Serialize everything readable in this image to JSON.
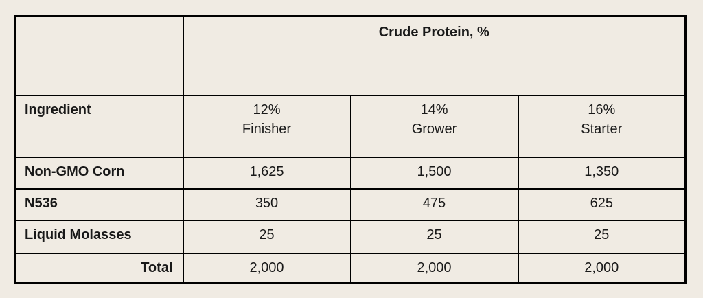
{
  "colors": {
    "page_background": "#f0ebe3",
    "table_border": "#000000",
    "text": "#191919"
  },
  "table": {
    "spanning_header": "Crude Protein, %",
    "ingredient_header": "Ingredient",
    "column_headers": [
      {
        "percent": "12%",
        "name": "Finisher"
      },
      {
        "percent": "14%",
        "name": "Grower"
      },
      {
        "percent": "16%",
        "name": "Starter"
      }
    ],
    "rows": [
      {
        "label": "Non-GMO Corn",
        "values": [
          "1,625",
          "1,500",
          "1,350"
        ]
      },
      {
        "label": "N536",
        "values": [
          "350",
          "475",
          "625"
        ]
      },
      {
        "label": "Liquid Molasses",
        "values": [
          "25",
          "25",
          "25"
        ]
      }
    ],
    "total_row": {
      "label": "Total",
      "values": [
        "2,000",
        "2,000",
        "2,000"
      ]
    }
  }
}
